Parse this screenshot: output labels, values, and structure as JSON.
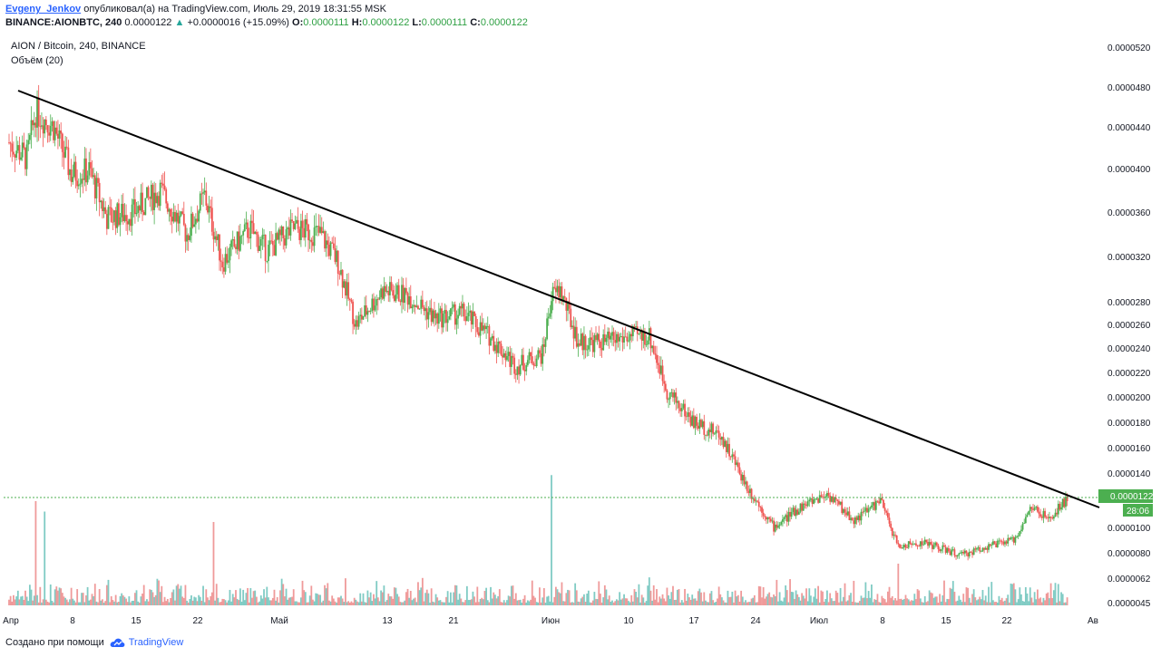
{
  "header": {
    "author": "Evgeny_Jenkov",
    "published_text": "опубликовал(а) на TradingView.com, Июль 29, 2019 18:31:55 MSK",
    "ticker_line": "BINANCE:AIONBTC, 240",
    "last": "0.0000122",
    "change": "+0.0000016 (+15.09%)",
    "o_label": "O:",
    "o_value": "0.0000111",
    "h_label": "H:",
    "h_value": "0.0000122",
    "l_label": "L:",
    "l_value": "0.0000111",
    "c_label": "C:",
    "c_value": "0.0000122"
  },
  "legend": {
    "symbol": "AION / Bitcoin, 240, BINANCE",
    "volume": "Объём (20)"
  },
  "footer": {
    "created": "Создано при помощи",
    "brand": "TradingView"
  },
  "price_label": {
    "value": "0.0000122",
    "countdown": "28:06"
  },
  "colors": {
    "up": "#26a69a",
    "up_body": "#4caf50",
    "down": "#ef5350",
    "vol_up": "#80cbc4",
    "vol_down": "#ef9a9a",
    "trendline": "#000000",
    "price_line": "#4caf50",
    "brand": "#2962ff"
  },
  "chart_data": {
    "type": "candlestick",
    "symbol": "AION / Bitcoin, 240, BINANCE",
    "y_ticks": [
      "0.0000520",
      "0.0000480",
      "0.0000440",
      "0.0000400",
      "0.0000360",
      "0.0000320",
      "0.0000280",
      "0.0000260",
      "0.0000240",
      "0.0000220",
      "0.0000200",
      "0.0000180",
      "0.0000160",
      "0.0000140",
      "0.0000100",
      "0.0000080",
      "0.0000062",
      "0.0000045"
    ],
    "x_ticks": [
      "Апр",
      "8",
      "15",
      "22",
      "Май",
      "13",
      "21",
      "Июн",
      "10",
      "17",
      "24",
      "Июл",
      "8",
      "15",
      "22",
      "Ав"
    ],
    "price_path": [
      {
        "date": "2019-04-01",
        "close": 4.25e-05
      },
      {
        "date": "2019-04-03",
        "close": 4.1e-05
      },
      {
        "date": "2019-04-04",
        "close": 4.55e-05
      },
      {
        "date": "2019-04-06",
        "close": 4.4e-05
      },
      {
        "date": "2019-04-08",
        "close": 3.95e-05
      },
      {
        "date": "2019-04-10",
        "close": 3.98e-05
      },
      {
        "date": "2019-04-12",
        "close": 3.55e-05
      },
      {
        "date": "2019-04-15",
        "close": 3.6e-05
      },
      {
        "date": "2019-04-18",
        "close": 3.8e-05
      },
      {
        "date": "2019-04-21",
        "close": 3.4e-05
      },
      {
        "date": "2019-04-23",
        "close": 3.75e-05
      },
      {
        "date": "2019-04-25",
        "close": 3.15e-05
      },
      {
        "date": "2019-04-28",
        "close": 3.45e-05
      },
      {
        "date": "2019-04-30",
        "close": 3.25e-05
      },
      {
        "date": "2019-05-03",
        "close": 3.45e-05
      },
      {
        "date": "2019-05-06",
        "close": 3.4e-05
      },
      {
        "date": "2019-05-08",
        "close": 3.15e-05
      },
      {
        "date": "2019-05-10",
        "close": 2.6e-05
      },
      {
        "date": "2019-05-13",
        "close": 2.9e-05
      },
      {
        "date": "2019-05-16",
        "close": 2.85e-05
      },
      {
        "date": "2019-05-19",
        "close": 2.65e-05
      },
      {
        "date": "2019-05-22",
        "close": 2.7e-05
      },
      {
        "date": "2019-05-25",
        "close": 2.5e-05
      },
      {
        "date": "2019-05-28",
        "close": 2.25e-05
      },
      {
        "date": "2019-05-31",
        "close": 2.35e-05
      },
      {
        "date": "2019-06-01",
        "close": 2.85e-05
      },
      {
        "date": "2019-06-02",
        "close": 2.9e-05
      },
      {
        "date": "2019-06-04",
        "close": 2.45e-05
      },
      {
        "date": "2019-06-07",
        "close": 2.45e-05
      },
      {
        "date": "2019-06-10",
        "close": 2.5e-05
      },
      {
        "date": "2019-06-12",
        "close": 2.5e-05
      },
      {
        "date": "2019-06-14",
        "close": 2.05e-05
      },
      {
        "date": "2019-06-17",
        "close": 1.8e-05
      },
      {
        "date": "2019-06-20",
        "close": 1.7e-05
      },
      {
        "date": "2019-06-23",
        "close": 1.3e-05
      },
      {
        "date": "2019-06-26",
        "close": 1e-05
      },
      {
        "date": "2019-06-29",
        "close": 1.15e-05
      },
      {
        "date": "2019-07-02",
        "close": 1.25e-05
      },
      {
        "date": "2019-07-05",
        "close": 1.05e-05
      },
      {
        "date": "2019-07-08",
        "close": 1.2e-05
      },
      {
        "date": "2019-07-10",
        "close": 8.5e-06
      },
      {
        "date": "2019-07-13",
        "close": 8.8e-06
      },
      {
        "date": "2019-07-17",
        "close": 7.8e-06
      },
      {
        "date": "2019-07-20",
        "close": 8.5e-06
      },
      {
        "date": "2019-07-23",
        "close": 9e-06
      },
      {
        "date": "2019-07-25",
        "close": 1.15e-05
      },
      {
        "date": "2019-07-27",
        "close": 1.05e-05
      },
      {
        "date": "2019-07-29",
        "close": 1.22e-05
      }
    ],
    "trendline": [
      {
        "date": "2019-04-01",
        "price": 4.75e-05
      },
      {
        "date": "2019-07-30",
        "price": 1.15e-05
      }
    ],
    "last_price": 1.22e-05,
    "volume_spikes": [
      {
        "date": "2019-04-04",
        "rel": 1.0
      },
      {
        "date": "2019-04-05",
        "rel": 0.9
      },
      {
        "date": "2019-04-24",
        "rel": 0.8
      },
      {
        "date": "2019-06-01",
        "rel": 1.25
      },
      {
        "date": "2019-07-10",
        "rel": 0.4
      }
    ],
    "grid": false
  }
}
